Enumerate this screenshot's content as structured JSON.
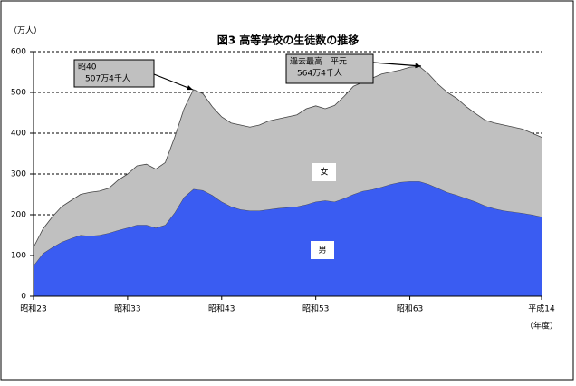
{
  "chart_data": {
    "type": "stacked_area",
    "title": "図3 高等学校の生徒数の推移",
    "y_label": "（万人）",
    "x_label": "（年度）",
    "categories": [
      "昭和23",
      null,
      null,
      null,
      null,
      null,
      null,
      null,
      null,
      null,
      "昭和33",
      null,
      null,
      null,
      null,
      null,
      null,
      null,
      null,
      null,
      "昭和43",
      null,
      null,
      null,
      null,
      null,
      null,
      null,
      null,
      null,
      "昭和53",
      null,
      null,
      null,
      null,
      null,
      null,
      null,
      null,
      null,
      "昭和63",
      null,
      null,
      null,
      null,
      null,
      null,
      null,
      null,
      null,
      null,
      null,
      null,
      null,
      "平成14"
    ],
    "series": [
      {
        "name": "男",
        "color": "#3a5cf2",
        "values": [
          75,
          105,
          120,
          133,
          142,
          150,
          148,
          150,
          155,
          162,
          168,
          175,
          175,
          168,
          175,
          205,
          243,
          263,
          260,
          248,
          232,
          220,
          213,
          210,
          210,
          213,
          216,
          218,
          220,
          225,
          232,
          235,
          232,
          240,
          250,
          258,
          262,
          268,
          275,
          280,
          282,
          282,
          275,
          265,
          255,
          248,
          240,
          232,
          222,
          215,
          210,
          207,
          204,
          200,
          195
        ]
      },
      {
        "name": "女",
        "color": "#c0c0c0",
        "values": [
          45,
          60,
          75,
          87,
          93,
          100,
          107,
          108,
          110,
          123,
          132,
          145,
          149,
          144,
          153,
          185,
          217,
          244,
          237,
          217,
          208,
          205,
          207,
          205,
          210,
          217,
          219,
          222,
          225,
          235,
          235,
          225,
          236,
          250,
          265,
          267,
          273,
          277,
          275,
          275,
          280,
          282,
          270,
          255,
          245,
          237,
          225,
          216,
          210,
          210,
          210,
          208,
          206,
          200,
          195
        ]
      }
    ],
    "annotations": [
      [
        "昭40",
        "507万4千人"
      ],
      [
        "過去最高　平元",
        "564万4千人"
      ]
    ],
    "ylim": [
      0,
      600
    ],
    "yticks": [
      0,
      100,
      200,
      300,
      400,
      500,
      600
    ],
    "grid": true
  }
}
